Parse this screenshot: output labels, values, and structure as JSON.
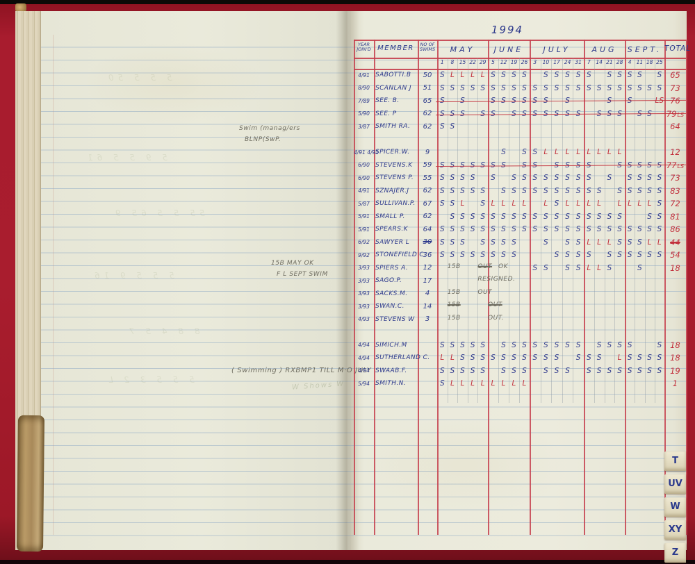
{
  "title_year": "1994",
  "index_tabs": [
    "T",
    "UV",
    "W",
    "XY",
    "Z"
  ],
  "table": {
    "header": {
      "year_line1": "YEAR",
      "year_line2": "JOIN'D",
      "member": "MEMBER",
      "swims_line1": "NO OF",
      "swims_line2": "SWIMS",
      "total": "TOTAL"
    },
    "months": [
      {
        "name": "MAY",
        "dates": [
          "1",
          "8",
          "15",
          "22",
          "29"
        ]
      },
      {
        "name": "JUNE",
        "dates": [
          "5",
          "12",
          "19",
          "26"
        ]
      },
      {
        "name": "JULY",
        "dates": [
          "3",
          "10",
          "17",
          "24",
          "31"
        ]
      },
      {
        "name": "AUG",
        "dates": [
          "7",
          "14",
          "21",
          "28"
        ]
      },
      {
        "name": "SEPT.",
        "dates": [
          "4",
          "11",
          "18",
          "25"
        ]
      }
    ],
    "rows": [
      {
        "year": "4/91",
        "member": "SABOTTI.B",
        "swims": "50",
        "total": "65",
        "marks": [
          "S",
          "L",
          "L",
          "L",
          "L",
          "S",
          "S",
          "S",
          "S",
          "",
          "S",
          "S",
          "S",
          "S",
          "S",
          "",
          "S",
          "S",
          "S",
          "S",
          "",
          "S"
        ]
      },
      {
        "year": "8/90",
        "member": "SCANLAN J",
        "swims": "51",
        "total": "73",
        "marks": [
          "S",
          "S",
          "S",
          "S",
          "S",
          "S",
          "S",
          "S",
          "S",
          "S",
          "S",
          "S",
          "S",
          "S",
          "S",
          "S",
          "S",
          "S",
          "S",
          "S",
          "S",
          "S"
        ]
      },
      {
        "year": "7/89",
        "member": "SEE. B.",
        "swims": "65",
        "total": "76",
        "struck": true,
        "marks": [
          "S",
          "",
          "S",
          "",
          "",
          "S",
          "S",
          "S",
          "S",
          "S",
          "S",
          "",
          "S",
          "",
          "",
          "",
          "S",
          "",
          "S",
          "",
          "",
          "LS"
        ]
      },
      {
        "year": "5/90",
        "member": "SEE. P",
        "swims": "62",
        "total": "79",
        "total_suffix": "LS",
        "struck": true,
        "marks": [
          "S",
          "S",
          "S",
          "",
          "S",
          "S",
          "",
          "S",
          "S",
          "S",
          "S",
          "S",
          "S",
          "S",
          "",
          "S",
          "S",
          "S",
          "",
          "S",
          "S",
          ""
        ]
      },
      {
        "year": "3/87",
        "member": "SMITH RA.",
        "swims": "62",
        "total": "64",
        "marks": [
          "S",
          "S",
          "",
          "",
          "",
          "",
          "",
          "",
          "",
          "",
          "",
          "",
          "",
          "",
          "",
          "",
          "",
          "",
          "",
          "",
          "",
          ""
        ]
      },
      {
        "blank": true
      },
      {
        "year": "4/91 4/91",
        "member": "SPICER.W.",
        "swims": "9",
        "total": "12",
        "marks": [
          "",
          "",
          "",
          "",
          "",
          "",
          "S",
          "",
          "S",
          "S",
          "L",
          "L",
          "L",
          "L",
          "L",
          "L",
          "L",
          "L",
          "",
          "",
          "",
          ""
        ]
      },
      {
        "year": "6/90",
        "member": "STEVENS.K",
        "swims": "59",
        "total": "77",
        "total_suffix": "LS",
        "struck": true,
        "marks": [
          "S",
          "S",
          "S",
          "S",
          "S",
          "S",
          "S",
          "",
          "S",
          "S",
          "",
          "S",
          "S",
          "S",
          "S",
          "",
          "",
          "S",
          "S",
          "S",
          "S",
          "S"
        ]
      },
      {
        "year": "6/90",
        "member": "STEVENS P.",
        "swims": "55",
        "total": "73",
        "marks": [
          "S",
          "S",
          "S",
          "S",
          "",
          "S",
          "",
          "S",
          "S",
          "S",
          "S",
          "S",
          "S",
          "S",
          "S",
          "",
          "S",
          "",
          "S",
          "S",
          "S",
          "S"
        ]
      },
      {
        "year": "4/91",
        "member": "SZNAJER.J",
        "swims": "62",
        "total": "83",
        "marks": [
          "S",
          "S",
          "S",
          "S",
          "S",
          "",
          "S",
          "S",
          "S",
          "S",
          "S",
          "S",
          "S",
          "S",
          "S",
          "S",
          "",
          "S",
          "S",
          "S",
          "S",
          "S"
        ]
      },
      {
        "year": "5/87",
        "member": "SULLIVAN.P.",
        "swims": "67",
        "total": "72",
        "marks": [
          "S",
          "S",
          "L",
          "",
          "S",
          "L",
          "L",
          "L",
          "L",
          "",
          "L",
          "S",
          "L",
          "L",
          "L",
          "L",
          "",
          "L",
          "L",
          "L",
          "L",
          "S"
        ]
      },
      {
        "year": "5/91",
        "member": "SMALL P.",
        "swims": "62",
        "total": "81",
        "marks": [
          "",
          "S",
          "S",
          "S",
          "S",
          "S",
          "S",
          "S",
          "S",
          "S",
          "S",
          "S",
          "S",
          "S",
          "S",
          "S",
          "S",
          "S",
          "",
          "",
          "S",
          "S"
        ]
      },
      {
        "year": "5/91",
        "member": "SPEARS.K",
        "swims": "64",
        "total": "86",
        "marks": [
          "S",
          "S",
          "S",
          "S",
          "S",
          "S",
          "S",
          "S",
          "S",
          "S",
          "S",
          "S",
          "S",
          "S",
          "S",
          "S",
          "S",
          "S",
          "S",
          "S",
          "S",
          "S"
        ]
      },
      {
        "year": "6/92",
        "member": "SAWYER L",
        "swims": "30",
        "swims_struck": true,
        "total": "44",
        "total_struck": true,
        "marks": [
          "S",
          "S",
          "S",
          "",
          "S",
          "S",
          "S",
          "S",
          "",
          "",
          "S",
          "",
          "S",
          "S",
          "L",
          "L",
          "L",
          "S",
          "S",
          "S",
          "L",
          "L"
        ]
      },
      {
        "year": "9/92",
        "member": "STONEFIELD C.",
        "swims": "36",
        "total": "54",
        "marks": [
          "S",
          "S",
          "S",
          "S",
          "S",
          "S",
          "S",
          "S",
          "",
          "",
          "",
          "S",
          "S",
          "S",
          "S",
          "",
          "S",
          "S",
          "S",
          "S",
          "S",
          "S"
        ]
      },
      {
        "year": "3/93",
        "member": "SPIERS A.",
        "swims": "12",
        "total": "18",
        "marks": [
          "",
          "",
          "",
          "",
          "",
          "",
          "",
          "",
          "",
          "S",
          "S",
          "",
          "S",
          "S",
          "L",
          "L",
          "S",
          "",
          "",
          "S",
          "",
          ""
        ],
        "notes": [
          {
            "text": "15B",
            "at": 1
          },
          {
            "text": "OUT",
            "at": 4,
            "struck": true
          },
          {
            "text": "OK",
            "at": 6
          }
        ]
      },
      {
        "year": "3/93",
        "member": "SAGO.P.",
        "swims": "17",
        "total": "",
        "marks": [
          "",
          "",
          "",
          "",
          "",
          "",
          "",
          "",
          "",
          "",
          "",
          "",
          "",
          "",
          "",
          "",
          "",
          "",
          "",
          "",
          "",
          ""
        ],
        "notes": [
          {
            "text": "RESIGNED.",
            "at": 4
          }
        ]
      },
      {
        "year": "3/93",
        "member": "SACKS.M.",
        "swims": "4",
        "total": "",
        "marks": [
          "",
          "",
          "",
          "",
          "",
          "",
          "",
          "",
          "",
          "",
          "",
          "",
          "",
          "",
          "",
          "",
          "",
          "",
          "",
          "",
          "",
          ""
        ],
        "notes": [
          {
            "text": "15B",
            "at": 1
          },
          {
            "text": "OUT",
            "at": 4
          }
        ]
      },
      {
        "year": "3/93",
        "member": "SWAN.C.",
        "swims": "14",
        "total": "",
        "marks": [
          "",
          "",
          "",
          "",
          "",
          "",
          "",
          "",
          "",
          "",
          "",
          "",
          "",
          "",
          "",
          "",
          "",
          "",
          "",
          "",
          "",
          ""
        ],
        "notes": [
          {
            "text": "15B",
            "at": 1,
            "struck": true
          },
          {
            "text": "OUT",
            "at": 5,
            "struck": true
          }
        ]
      },
      {
        "year": "4/93",
        "member": "STEVENS W",
        "swims": "3",
        "total": "",
        "marks": [
          "",
          "",
          "",
          "",
          "",
          "",
          "",
          "",
          "",
          "",
          "",
          "",
          "",
          "",
          "",
          "",
          "",
          "",
          "",
          "",
          "",
          ""
        ],
        "notes": [
          {
            "text": "15B",
            "at": 1
          },
          {
            "text": "OUT.",
            "at": 5
          }
        ]
      },
      {
        "blank": true
      },
      {
        "year": "4/94",
        "member": "SIMICH.M",
        "swims": "",
        "total": "18",
        "marks": [
          "S",
          "S",
          "S",
          "S",
          "S",
          "",
          "S",
          "S",
          "S",
          "S",
          "S",
          "S",
          "S",
          "S",
          "",
          "S",
          "S",
          "S",
          "S",
          "",
          "",
          "S"
        ]
      },
      {
        "year": "4/94",
        "member": "SUTHERLAND C.",
        "swims": "",
        "total": "18",
        "marks": [
          "L",
          "L",
          "S",
          "S",
          "S",
          "S",
          "S",
          "S",
          "S",
          "S",
          "S",
          "S",
          "",
          "S",
          "S",
          "S",
          "",
          "L",
          "S",
          "S",
          "S",
          "S"
        ]
      },
      {
        "year": "4/94",
        "member": "SWAAB.F.",
        "swims": "",
        "total": "19",
        "marks": [
          "S",
          "S",
          "S",
          "S",
          "S",
          "",
          "S",
          "S",
          "S",
          "",
          "S",
          "S",
          "S",
          "",
          "S",
          "S",
          "S",
          "S",
          "S",
          "S",
          "S",
          "S"
        ]
      },
      {
        "year": "5/94",
        "member": "SMITH.N.",
        "swims": "",
        "total": "1",
        "marks": [
          "S",
          "L",
          "L",
          "L",
          "L",
          "L",
          "L",
          "L",
          "L",
          "",
          "",
          "",
          "",
          "",
          "",
          "",
          "",
          "",
          "",
          "",
          "",
          ""
        ]
      }
    ]
  },
  "annotations": {
    "note1_line1": "Swim (manag/ers",
    "note1_line2": "BLNP(SwP.",
    "note2_line1": "15B MAY OK",
    "note2_line2": "F L SEPT SWIM",
    "note3": "( Swimming )  RXBMP1 TILL M·O JULY",
    "ghost_pencil": "W Shows W"
  },
  "ghost_bleedthrough": [
    "5 5 5 50",
    "5 9 5 5 61",
    "55 5 5 65 9",
    "5 5 5 9 16",
    "8 8 4 5 7",
    "5 5 5 3 2 L"
  ],
  "colors": {
    "ink_blue": "#2e3a8c",
    "ink_red": "#c2303c",
    "pencil": "#6e6c60",
    "grid_red": "#c53f4d",
    "ruling_blue": "#a9bccb",
    "page": "#e7e7d8",
    "cover_red": "#a81c2e"
  }
}
